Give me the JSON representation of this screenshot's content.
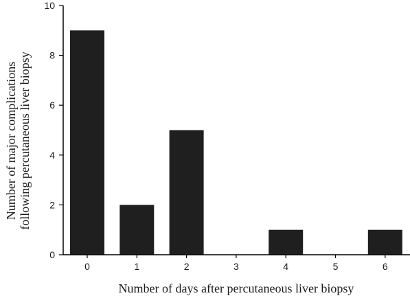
{
  "chart_data": {
    "type": "bar",
    "categories": [
      "0",
      "1",
      "2",
      "3",
      "4",
      "5",
      "6"
    ],
    "values": [
      9,
      2,
      5,
      0,
      1,
      0,
      1
    ],
    "title": "",
    "xlabel": "Number of days after percutaneous liver biopsy",
    "ylabel_lines": [
      "Number of major complications",
      "following percutaneous liver biopsy"
    ],
    "ylim": [
      0,
      10
    ],
    "yticks": [
      0,
      2,
      4,
      6,
      8,
      10
    ],
    "grid": false,
    "bar_color": "#1f1f1f"
  }
}
